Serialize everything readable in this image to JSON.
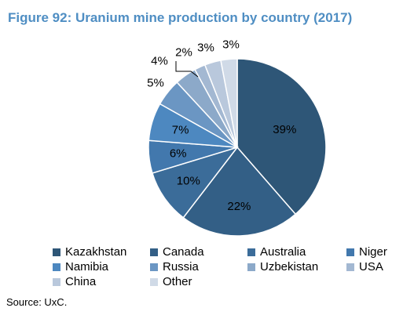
{
  "title": "Figure 92: Uranium mine production by country (2017)",
  "source": "Source: UxC.",
  "chart_data": {
    "type": "pie",
    "title": "Figure 92: Uranium mine production by country (2017)",
    "slices": [
      {
        "label": "Kazakhstan",
        "value": 39,
        "text": "39%",
        "color": "#2e5677"
      },
      {
        "label": "Canada",
        "value": 22,
        "text": "22%",
        "color": "#335f86"
      },
      {
        "label": "Australia",
        "value": 10,
        "text": "10%",
        "color": "#3b6c99"
      },
      {
        "label": "Niger",
        "value": 6,
        "text": "6%",
        "color": "#4278ad"
      },
      {
        "label": "Namibia",
        "value": 7,
        "text": "7%",
        "color": "#4d88c0"
      },
      {
        "label": "Russia",
        "value": 5,
        "text": "5%",
        "color": "#6b96c3"
      },
      {
        "label": "Uzbekistan",
        "value": 4,
        "text": "4%",
        "color": "#8ca9c9"
      },
      {
        "label": "USA",
        "value": 2,
        "text": "2%",
        "color": "#a3b8d2"
      },
      {
        "label": "China",
        "value": 3,
        "text": "3%",
        "color": "#b9c8dc"
      },
      {
        "label": "Other",
        "value": 3,
        "text": "3%",
        "color": "#d0dae7"
      }
    ],
    "legend_position": "bottom"
  }
}
